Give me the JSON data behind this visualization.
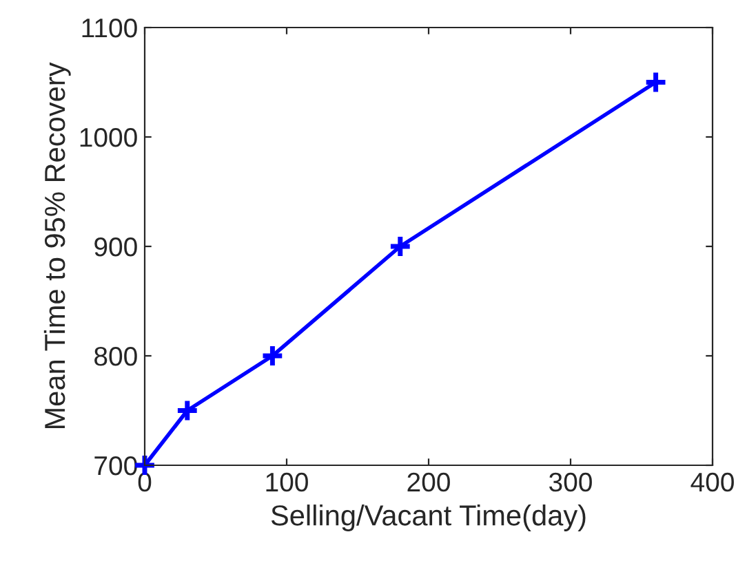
{
  "chart_data": {
    "type": "line",
    "xlabel": "Selling/Vacant Time(day)",
    "ylabel": "Mean Time to 95% Recovery",
    "x": [
      0,
      30,
      90,
      180,
      360
    ],
    "series": [
      {
        "color": "#0000ff",
        "values": [
          700,
          750,
          800,
          900,
          1050
        ]
      }
    ],
    "xlim": [
      0,
      400
    ],
    "xticks": [
      0,
      100,
      200,
      300,
      400
    ],
    "ylim": [
      700,
      1100
    ],
    "yticks": [
      700,
      800,
      900,
      1000,
      1100
    ],
    "marker": "cross",
    "line_style": "solid",
    "grid": false,
    "legend": false
  }
}
